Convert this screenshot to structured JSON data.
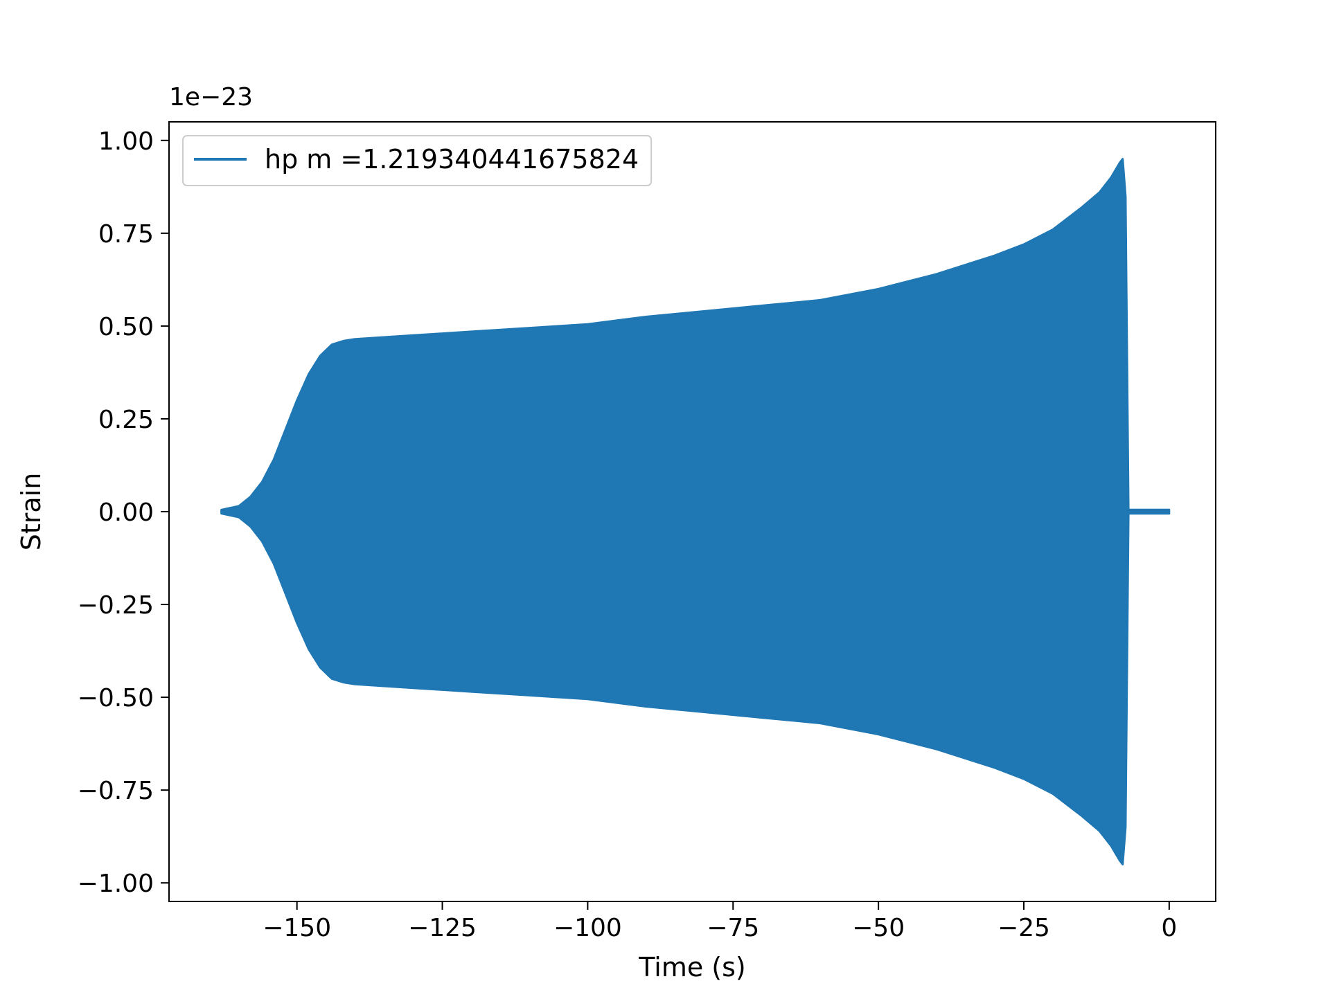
{
  "chart_data": {
    "type": "line",
    "title": "",
    "xlabel": "Time (s)",
    "ylabel": "Strain",
    "offset_text": "1e−23",
    "xlim": [
      -172,
      8
    ],
    "ylim": [
      -1.05,
      1.05
    ],
    "grid": false,
    "legend_placement": "top-left",
    "x_ticks": [
      -150,
      -125,
      -100,
      -75,
      -50,
      -25,
      0
    ],
    "x_tick_labels": [
      "−150",
      "−125",
      "−100",
      "−75",
      "−50",
      "−25",
      "0"
    ],
    "y_ticks": [
      1.0,
      0.75,
      0.5,
      0.25,
      0.0,
      -0.25,
      -0.5,
      -0.75,
      -1.0
    ],
    "y_tick_labels": [
      "1.00",
      "0.75",
      "0.50",
      "0.25",
      "0.00",
      "−0.25",
      "−0.50",
      "−0.75",
      "−1.00"
    ],
    "series": [
      {
        "name": "hp m =1.219340441675824",
        "color": "#1f77b4",
        "envelope": {
          "x": [
            -163,
            -160,
            -158,
            -156,
            -154,
            -152,
            -150,
            -148,
            -146,
            -144,
            -142,
            -140,
            -135,
            -130,
            -120,
            -110,
            -100,
            -90,
            -80,
            -70,
            -60,
            -50,
            -40,
            -30,
            -25,
            -20,
            -15,
            -12,
            -10,
            -8.5,
            -8,
            -7.5,
            -7,
            0
          ],
          "upper": [
            0.005,
            0.015,
            0.04,
            0.08,
            0.14,
            0.22,
            0.3,
            0.37,
            0.42,
            0.45,
            0.46,
            0.465,
            0.47,
            0.475,
            0.485,
            0.495,
            0.505,
            0.525,
            0.54,
            0.555,
            0.57,
            0.6,
            0.64,
            0.69,
            0.72,
            0.76,
            0.82,
            0.86,
            0.9,
            0.94,
            0.95,
            0.85,
            0.005,
            0.005
          ],
          "lower": [
            -0.005,
            -0.015,
            -0.04,
            -0.08,
            -0.14,
            -0.22,
            -0.3,
            -0.37,
            -0.42,
            -0.45,
            -0.46,
            -0.465,
            -0.47,
            -0.475,
            -0.485,
            -0.495,
            -0.505,
            -0.525,
            -0.54,
            -0.555,
            -0.57,
            -0.6,
            -0.64,
            -0.69,
            -0.72,
            -0.76,
            -0.82,
            -0.86,
            -0.9,
            -0.94,
            -0.95,
            -0.85,
            -0.005,
            -0.005
          ]
        }
      }
    ]
  }
}
